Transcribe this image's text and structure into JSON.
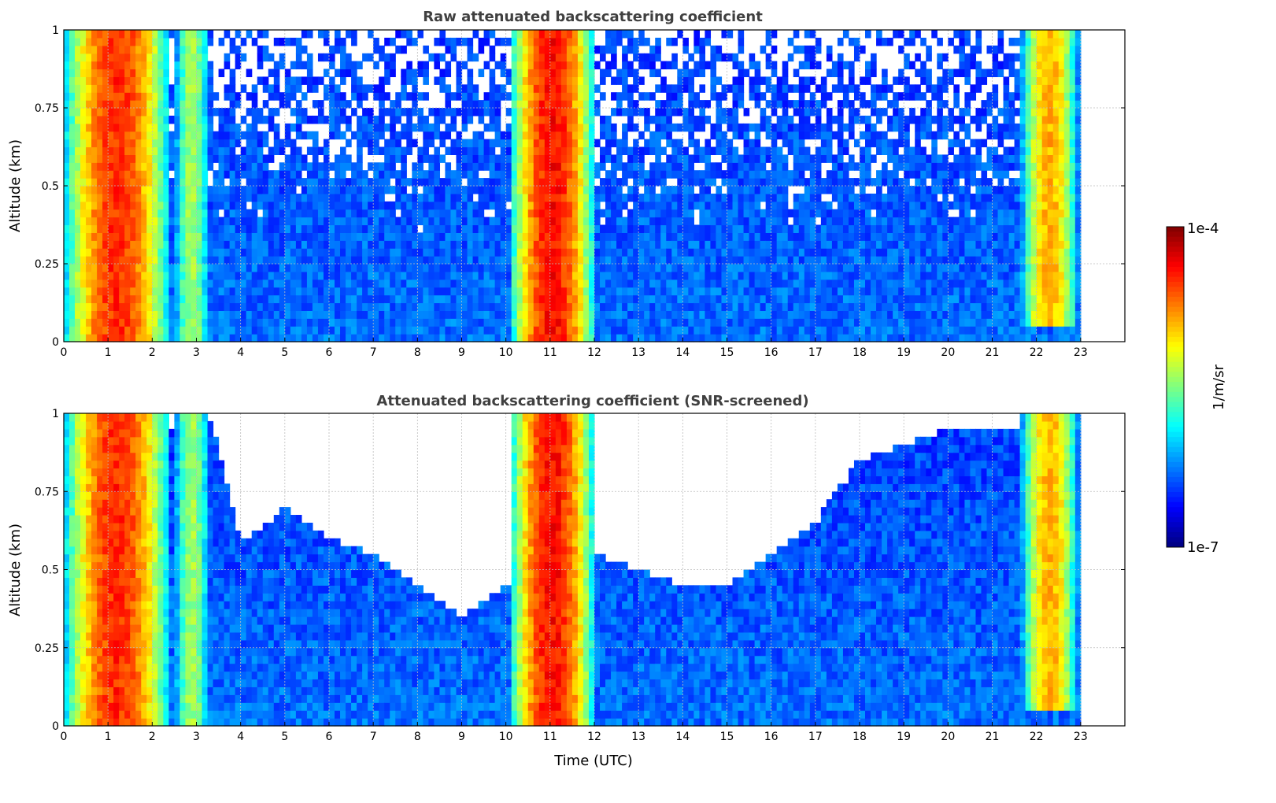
{
  "chart_data": [
    {
      "type": "heatmap",
      "title": "Raw attenuated backscattering coefficient",
      "xlabel": "",
      "ylabel": "Altitude (km)",
      "xlim": [
        0,
        24
      ],
      "ylim": [
        0,
        1
      ],
      "x_ticks": [
        "0",
        "1",
        "2",
        "3",
        "4",
        "5",
        "6",
        "7",
        "8",
        "9",
        "10",
        "11",
        "12",
        "13",
        "14",
        "15",
        "16",
        "17",
        "18",
        "19",
        "20",
        "21",
        "22",
        "23"
      ],
      "y_ticks": [
        "0",
        "0.25",
        "0.5",
        "0.75",
        "1"
      ],
      "grid": true,
      "data_end_hour": 23,
      "features": [
        {
          "start": 0.0,
          "end": 2.4,
          "peak_log10": -4.5,
          "base": 0.0,
          "top": 1.0
        },
        {
          "start": 2.4,
          "end": 3.4,
          "peak_log10": -5.4,
          "base": 0.0,
          "top": 1.0
        },
        {
          "start": 10.1,
          "end": 12.0,
          "peak_log10": -4.4,
          "base": 0.0,
          "top": 1.0
        },
        {
          "start": 21.6,
          "end": 23.0,
          "peak_log10": -4.9,
          "base": 0.05,
          "top": 1.0
        }
      ],
      "background_log10": -6.3
    },
    {
      "type": "heatmap",
      "title": "Attenuated backscattering coefficient (SNR-screened)",
      "xlabel": "Time (UTC)",
      "ylabel": "Altitude (km)",
      "xlim": [
        0,
        24
      ],
      "ylim": [
        0,
        1
      ],
      "x_ticks": [
        "0",
        "1",
        "2",
        "3",
        "4",
        "5",
        "6",
        "7",
        "8",
        "9",
        "10",
        "11",
        "12",
        "13",
        "14",
        "15",
        "16",
        "17",
        "18",
        "19",
        "20",
        "21",
        "22",
        "23"
      ],
      "y_ticks": [
        "0",
        "0.25",
        "0.5",
        "0.75",
        "1"
      ],
      "grid": true,
      "data_end_hour": 23,
      "features": [
        {
          "start": 0.0,
          "end": 2.4,
          "peak_log10": -4.5,
          "base": 0.0,
          "top": 1.0
        },
        {
          "start": 2.4,
          "end": 3.4,
          "peak_log10": -5.4,
          "base": 0.0,
          "top": 1.0
        },
        {
          "start": 10.1,
          "end": 12.0,
          "peak_log10": -4.4,
          "base": 0.0,
          "top": 1.0
        },
        {
          "start": 21.6,
          "end": 23.0,
          "peak_log10": -4.9,
          "base": 0.05,
          "top": 1.0
        }
      ],
      "screened_top_km": [
        {
          "hour": 3.4,
          "top": 0.95
        },
        {
          "hour": 4.0,
          "top": 0.58
        },
        {
          "hour": 5.0,
          "top": 0.7
        },
        {
          "hour": 6.0,
          "top": 0.6
        },
        {
          "hour": 7.0,
          "top": 0.55
        },
        {
          "hour": 8.0,
          "top": 0.45
        },
        {
          "hour": 9.0,
          "top": 0.35
        },
        {
          "hour": 10.0,
          "top": 0.45
        },
        {
          "hour": 12.0,
          "top": 0.55
        },
        {
          "hour": 13.0,
          "top": 0.5
        },
        {
          "hour": 14.0,
          "top": 0.45
        },
        {
          "hour": 15.0,
          "top": 0.45
        },
        {
          "hour": 16.0,
          "top": 0.55
        },
        {
          "hour": 17.0,
          "top": 0.65
        },
        {
          "hour": 18.0,
          "top": 0.85
        },
        {
          "hour": 19.0,
          "top": 0.9
        },
        {
          "hour": 20.0,
          "top": 0.95
        },
        {
          "hour": 21.0,
          "top": 0.95
        }
      ],
      "background_log10": -6.3
    }
  ],
  "colorbar": {
    "label": "1/m/sr",
    "max_label": "1e-4",
    "min_label": "1e-7",
    "range_log10": [
      -7,
      -4
    ],
    "colormap": "jet"
  }
}
